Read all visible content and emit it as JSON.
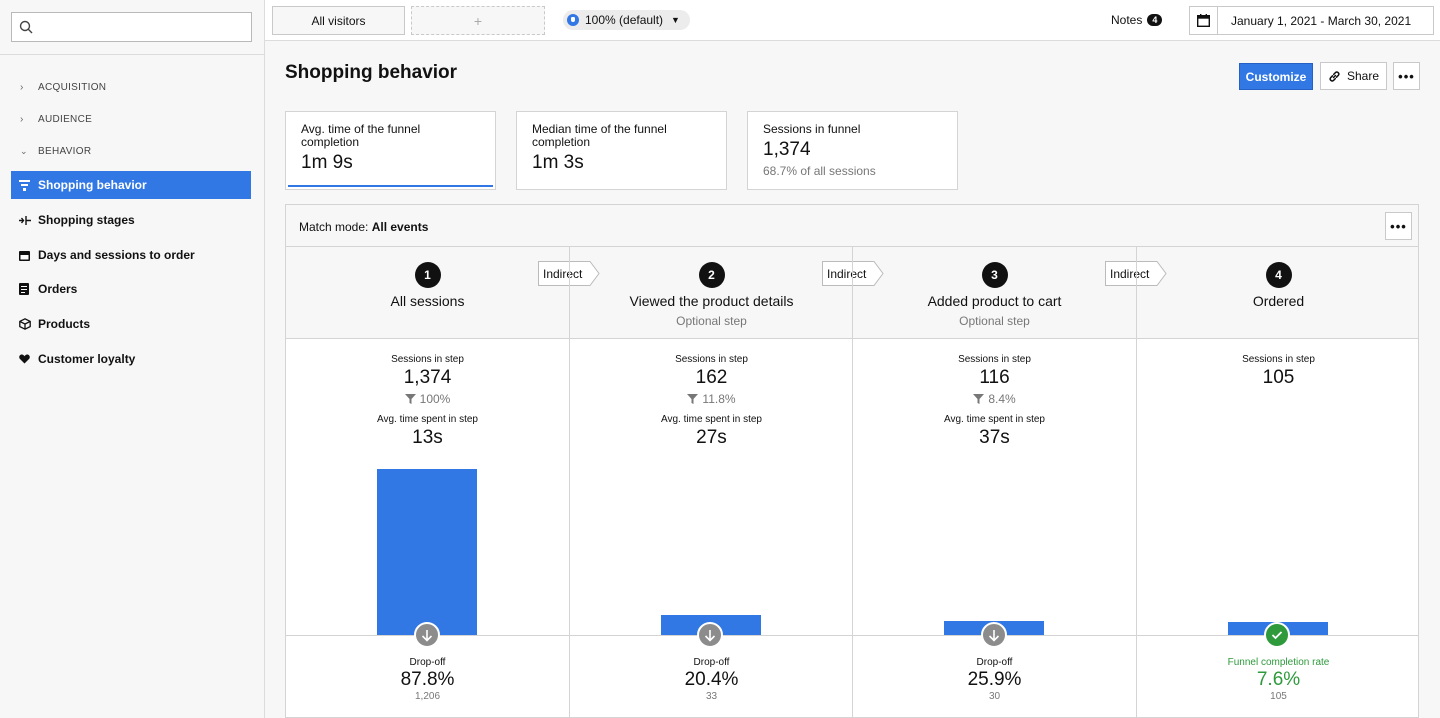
{
  "sidebar": {
    "search_placeholder": "",
    "sections": [
      {
        "label": "ACQUISITION",
        "expanded": false
      },
      {
        "label": "AUDIENCE",
        "expanded": false
      },
      {
        "label": "BEHAVIOR",
        "expanded": true
      }
    ],
    "items": [
      {
        "label": "Shopping behavior",
        "icon": "funnel-icon",
        "active": true
      },
      {
        "label": "Shopping stages",
        "icon": "stages-icon",
        "active": false
      },
      {
        "label": "Days and sessions to order",
        "icon": "calendar-icon",
        "active": false
      },
      {
        "label": "Orders",
        "icon": "receipt-icon",
        "active": false
      },
      {
        "label": "Products",
        "icon": "box-icon",
        "active": false
      },
      {
        "label": "Customer loyalty",
        "icon": "heart-icon",
        "active": false
      }
    ]
  },
  "topbar": {
    "segment": "All visitors",
    "add_segment": "+",
    "sampling": "100% (default)",
    "notes_label": "Notes",
    "notes_count": "4",
    "date_range": "January 1, 2021 - March 30, 2021"
  },
  "page": {
    "title": "Shopping behavior",
    "customize": "Customize",
    "share": "Share"
  },
  "kpis": [
    {
      "label": "Avg. time of the funnel completion",
      "value": "1m 9s",
      "sub": ""
    },
    {
      "label": "Median time of the funnel completion",
      "value": "1m 3s",
      "sub": ""
    },
    {
      "label": "Sessions in funnel",
      "value": "1,374",
      "sub": "68.7% of all sessions"
    }
  ],
  "funnel": {
    "match_label": "Match mode:",
    "match_value": "All events",
    "connector": "Indirect",
    "sessions_label": "Sessions in step",
    "avg_time_label": "Avg. time spent in step",
    "dropoff_label": "Drop-off",
    "completion_label": "Funnel completion rate",
    "accent": "#3178e5",
    "success": "#2e9a3c",
    "steps": [
      {
        "num": "1",
        "name": "All sessions",
        "optional": "",
        "sessions": "1,374",
        "pct": "100%",
        "avg_time": "13s",
        "footer_value": "87.8%",
        "footer_sub": "1,206",
        "sessions_value": 1374
      },
      {
        "num": "2",
        "name": "Viewed the product details",
        "optional": "Optional step",
        "sessions": "162",
        "pct": "11.8%",
        "avg_time": "27s",
        "footer_value": "20.4%",
        "footer_sub": "33",
        "sessions_value": 162
      },
      {
        "num": "3",
        "name": "Added product to cart",
        "optional": "Optional step",
        "sessions": "116",
        "pct": "8.4%",
        "avg_time": "37s",
        "footer_value": "25.9%",
        "footer_sub": "30",
        "sessions_value": 116
      },
      {
        "num": "4",
        "name": "Ordered",
        "optional": "",
        "sessions": "105",
        "pct": "",
        "avg_time": "",
        "footer_value": "7.6%",
        "footer_sub": "105",
        "sessions_value": 105
      }
    ]
  }
}
